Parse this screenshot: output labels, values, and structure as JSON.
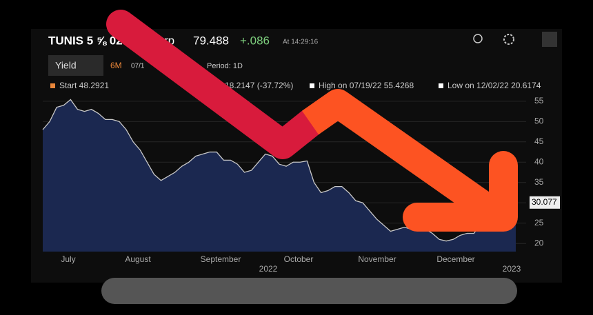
{
  "chart_data": {
    "type": "area",
    "header": {
      "ticker": "TUNIS 5 ⅝ 02",
      "ticker_end": "rp",
      "price": "79.488",
      "change": "+.086",
      "time": "At 14:29:16"
    },
    "controls": {
      "field": "Yield",
      "range": "6M",
      "date": "07/1",
      "period": "Period: 1D"
    },
    "legend": {
      "start": "Start 48.2921",
      "change": "18.2147 (-37.72%)",
      "high": "High on 07/19/22 55.4268",
      "low": "Low on 12/02/22 20.6174"
    },
    "x_labels": [
      "July",
      "August",
      "September",
      "October",
      "November",
      "December"
    ],
    "year_labels": [
      "2022",
      "2023"
    ],
    "values": [
      48,
      50,
      53.5,
      54,
      55.4,
      53,
      52.5,
      53,
      52,
      50.5,
      50.5,
      50,
      48,
      45,
      43,
      40,
      37,
      35.5,
      36.5,
      37.5,
      39,
      40,
      41.5,
      42,
      42.5,
      42.5,
      40.5,
      40.5,
      39.5,
      37.5,
      38,
      40,
      42,
      41.5,
      39.5,
      39,
      40,
      40,
      40.3,
      35,
      32.5,
      33,
      34,
      34,
      32.5,
      30.5,
      30,
      28,
      26,
      24.5,
      23,
      23.5,
      24,
      23.5,
      23.2,
      23.5,
      22.5,
      21,
      20.6,
      21,
      22,
      22.5,
      22.5,
      25,
      27,
      28,
      29,
      29.5,
      30.077
    ],
    "color": "#1b2850",
    "ylim": [
      18,
      56.5
    ],
    "yticks": [
      20,
      25,
      30,
      35,
      40,
      45,
      50,
      55
    ],
    "grid": true
  }
}
